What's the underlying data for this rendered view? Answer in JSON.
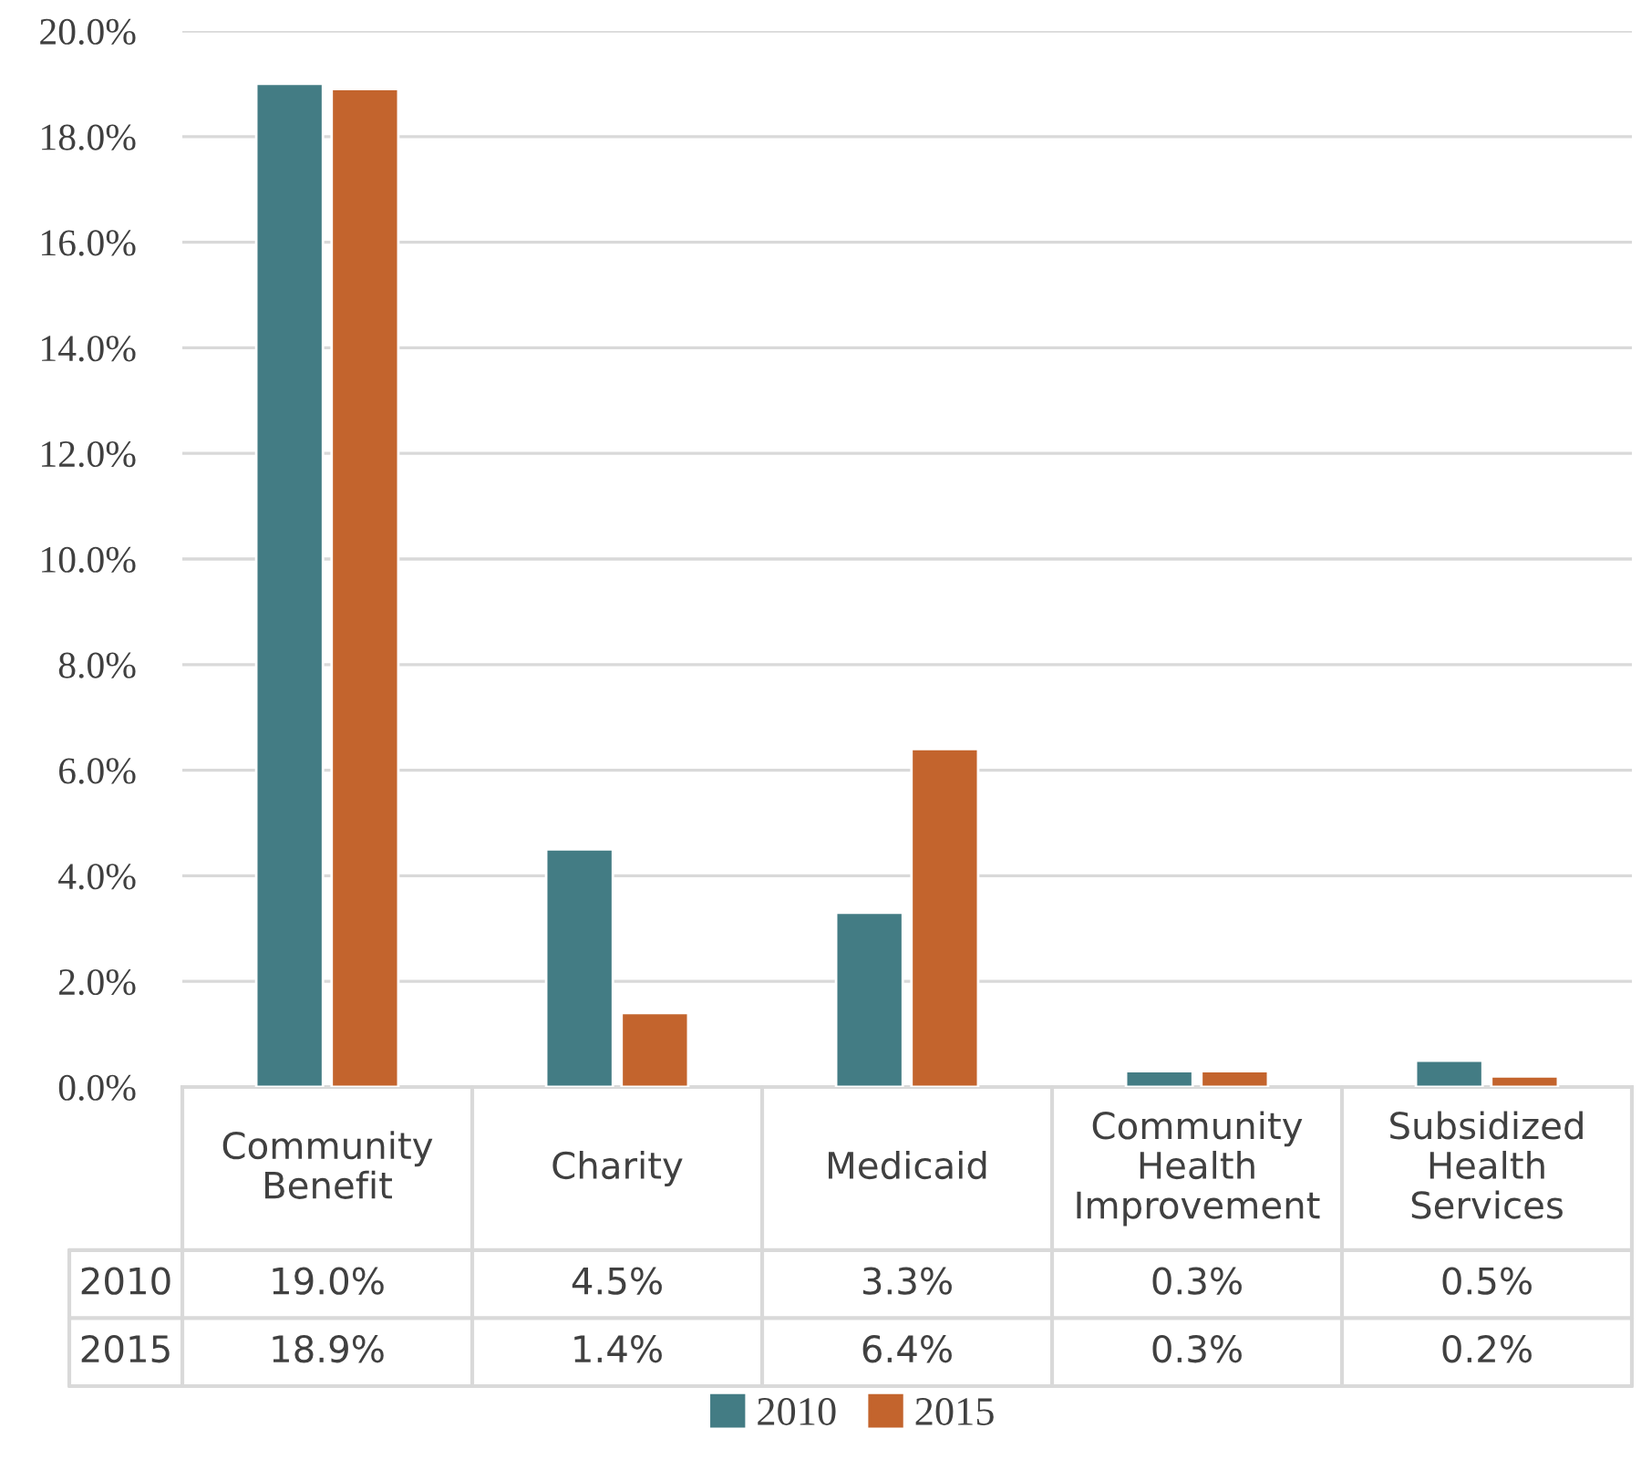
{
  "chart_data": {
    "type": "bar",
    "categories": [
      "Community Benefit",
      "Charity",
      "Medicaid",
      "Community Health Improvement",
      "Subsidized Health Services"
    ],
    "series": [
      {
        "name": "2010",
        "color": "#437c84",
        "values": [
          19.0,
          4.5,
          3.3,
          0.3,
          0.5
        ],
        "value_labels": [
          "19.0%",
          "4.5%",
          "3.3%",
          "0.3%",
          "0.5%"
        ]
      },
      {
        "name": "2015",
        "color": "#c3642d",
        "values": [
          18.9,
          1.4,
          6.4,
          0.3,
          0.2
        ],
        "value_labels": [
          "18.9%",
          "1.4%",
          "6.4%",
          "0.3%",
          "0.2%"
        ]
      }
    ],
    "ylim": [
      0,
      20
    ],
    "yticks": [
      {
        "value": 0,
        "label": "0.0%"
      },
      {
        "value": 2,
        "label": "2.0%"
      },
      {
        "value": 4,
        "label": "4.0%"
      },
      {
        "value": 6,
        "label": "6.0%"
      },
      {
        "value": 8,
        "label": "8.0%"
      },
      {
        "value": 10,
        "label": "10.0%"
      },
      {
        "value": 12,
        "label": "12.0%"
      },
      {
        "value": 14,
        "label": "14.0%"
      },
      {
        "value": 16,
        "label": "16.0%"
      },
      {
        "value": 18,
        "label": "18.0%"
      },
      {
        "value": 20,
        "label": "20.0%"
      }
    ],
    "grid": "y",
    "legend": "bottom"
  }
}
